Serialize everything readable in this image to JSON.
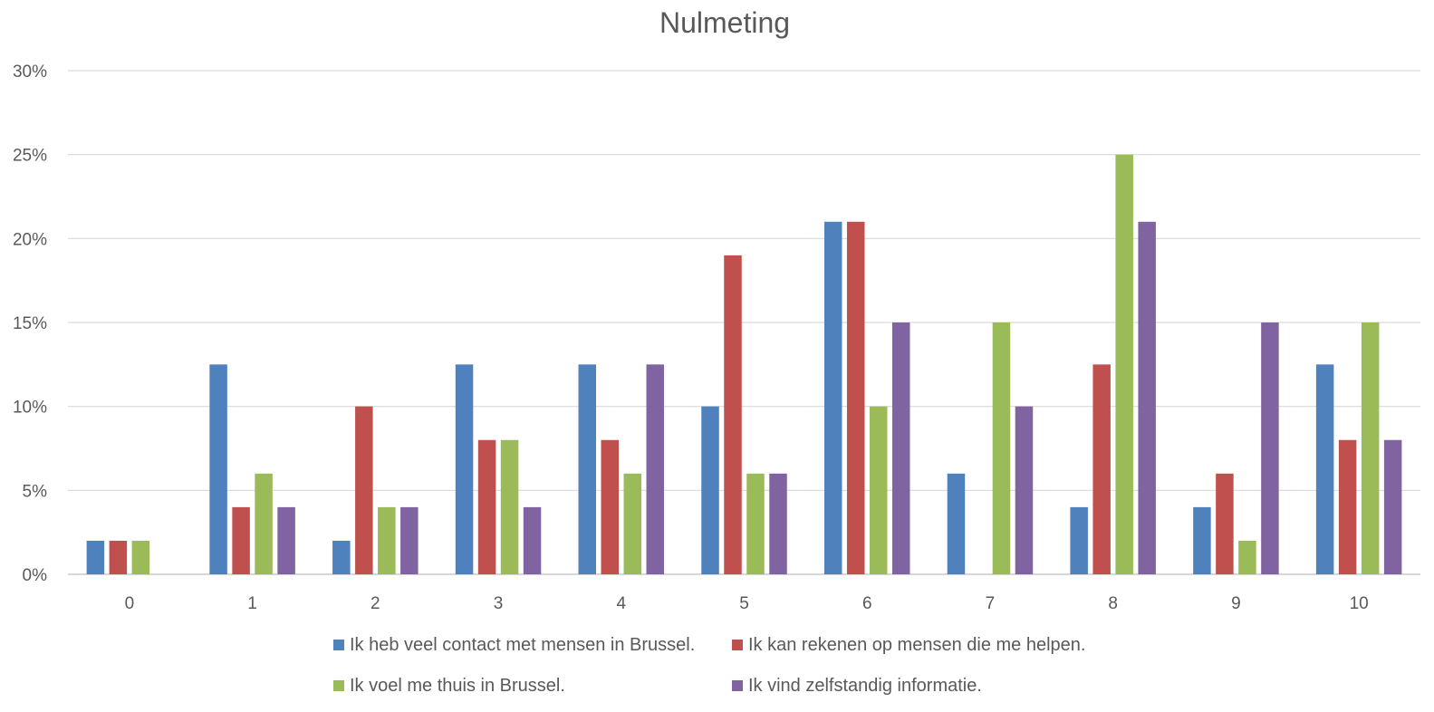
{
  "chart_data": {
    "type": "bar",
    "title": "Nulmeting",
    "xlabel": "",
    "ylabel": "",
    "categories": [
      "0",
      "1",
      "2",
      "3",
      "4",
      "5",
      "6",
      "7",
      "8",
      "9",
      "10"
    ],
    "ylim": [
      0,
      30
    ],
    "yticks": [
      0,
      5,
      10,
      15,
      20,
      25,
      30
    ],
    "ytick_labels": [
      "0%",
      "5%",
      "10%",
      "15%",
      "20%",
      "25%",
      "30%"
    ],
    "grid": true,
    "legend_position": "bottom",
    "series": [
      {
        "name": "Ik heb veel contact met mensen in Brussel.",
        "color": "#4f81bd",
        "values": [
          2,
          12.5,
          2,
          12.5,
          12.5,
          10,
          21,
          6,
          4,
          4,
          12.5
        ]
      },
      {
        "name": "Ik kan rekenen op mensen die me helpen.",
        "color": "#c0504d",
        "values": [
          2,
          4,
          10,
          8,
          8,
          19,
          21,
          0,
          12.5,
          6,
          8
        ]
      },
      {
        "name": "Ik voel me thuis in Brussel.",
        "color": "#9bbb59",
        "values": [
          2,
          6,
          4,
          8,
          6,
          6,
          10,
          15,
          25,
          2,
          15
        ]
      },
      {
        "name": "Ik vind zelfstandig informatie.",
        "color": "#8064a2",
        "values": [
          0,
          4,
          4,
          4,
          12.5,
          6,
          15,
          10,
          21,
          15,
          8
        ]
      }
    ]
  }
}
